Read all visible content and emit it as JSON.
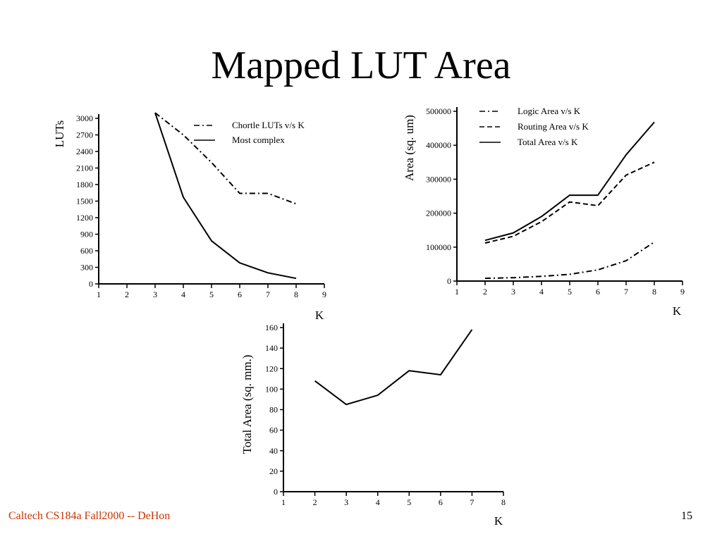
{
  "slide": {
    "title": "Mapped LUT Area",
    "footer_left": "Caltech CS184a Fall2000 -- DeHon",
    "page_number": "15"
  },
  "chart_data": [
    {
      "type": "line",
      "xlabel": "K",
      "ylabel": "LUTs",
      "xlim": [
        1,
        9
      ],
      "ylim": [
        0,
        3000
      ],
      "x_ticks": [
        "1",
        "2",
        "3",
        "4",
        "5",
        "6",
        "7",
        "8",
        "9"
      ],
      "y_ticks": [
        "0",
        "300",
        "600",
        "900",
        "1200",
        "1500",
        "1800",
        "2100",
        "2400",
        "2700",
        "3000"
      ],
      "legend_position": "top-right",
      "series": [
        {
          "name": "Chortle LUTs v/s K",
          "style": "dash-dot",
          "x": [
            3,
            4,
            5,
            6,
            7,
            8
          ],
          "y": [
            3100,
            2700,
            2200,
            1640,
            1640,
            1450
          ]
        },
        {
          "name": "Most complex",
          "style": "solid",
          "x": [
            3,
            4,
            5,
            6,
            7,
            8
          ],
          "y": [
            3100,
            1570,
            780,
            380,
            200,
            100
          ]
        }
      ]
    },
    {
      "type": "line",
      "xlabel": "K",
      "ylabel": "Area (sq. um)",
      "xlim": [
        1,
        9
      ],
      "ylim": [
        0,
        500000
      ],
      "x_ticks": [
        "1",
        "2",
        "3",
        "4",
        "5",
        "6",
        "7",
        "8",
        "9"
      ],
      "y_ticks": [
        "0",
        "100000",
        "200000",
        "300000",
        "400000",
        "500000"
      ],
      "legend_position": "top-right",
      "series": [
        {
          "name": "Logic Area v/s K",
          "style": "dash-dot",
          "x": [
            2,
            3,
            4,
            5,
            6,
            7,
            8
          ],
          "y": [
            8000,
            10000,
            14000,
            20000,
            33000,
            60000,
            115000
          ]
        },
        {
          "name": "Routing Area v/s K",
          "style": "dashed",
          "x": [
            2,
            3,
            4,
            5,
            6,
            7,
            8
          ],
          "y": [
            112000,
            132000,
            175000,
            233000,
            222000,
            312000,
            350000
          ]
        },
        {
          "name": "Total Area v/s K",
          "style": "solid",
          "x": [
            2,
            3,
            4,
            5,
            6,
            7,
            8
          ],
          "y": [
            120000,
            142000,
            190000,
            253000,
            253000,
            372000,
            468000
          ]
        }
      ]
    },
    {
      "type": "line",
      "xlabel": "K",
      "ylabel": "Total Area (sq. mm.)",
      "xlim": [
        1,
        8
      ],
      "ylim": [
        0,
        160
      ],
      "x_ticks": [
        "1",
        "2",
        "3",
        "4",
        "5",
        "6",
        "7",
        "8"
      ],
      "y_ticks": [
        "0",
        "20",
        "40",
        "60",
        "80",
        "100",
        "120",
        "140",
        "160"
      ],
      "series": [
        {
          "style": "solid",
          "x": [
            2,
            3,
            4,
            5,
            6,
            7
          ],
          "y": [
            108,
            85,
            94,
            118,
            114,
            158
          ]
        }
      ]
    }
  ]
}
